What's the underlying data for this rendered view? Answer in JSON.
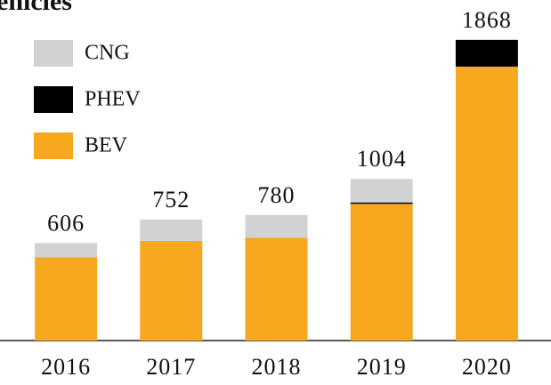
{
  "chart_data": {
    "type": "stacked_bar",
    "title": "ehicles",
    "categories": [
      "2016",
      "2017",
      "2018",
      "2019",
      "2020"
    ],
    "series": [
      {
        "name": "CNG",
        "color": "#d1d2d4",
        "values": [
          88,
          133,
          141,
          146,
          0
        ]
      },
      {
        "name": "PHEV",
        "color": "#000000",
        "values": [
          0,
          0,
          0,
          9,
          166
        ]
      },
      {
        "name": "BEV",
        "color": "#f7a81e",
        "values": [
          518,
          619,
          639,
          849,
          1702
        ]
      }
    ],
    "totals": [
      606,
      752,
      780,
      1004,
      1868
    ],
    "ylim": [
      0,
      1950
    ],
    "legend": "upper left"
  }
}
